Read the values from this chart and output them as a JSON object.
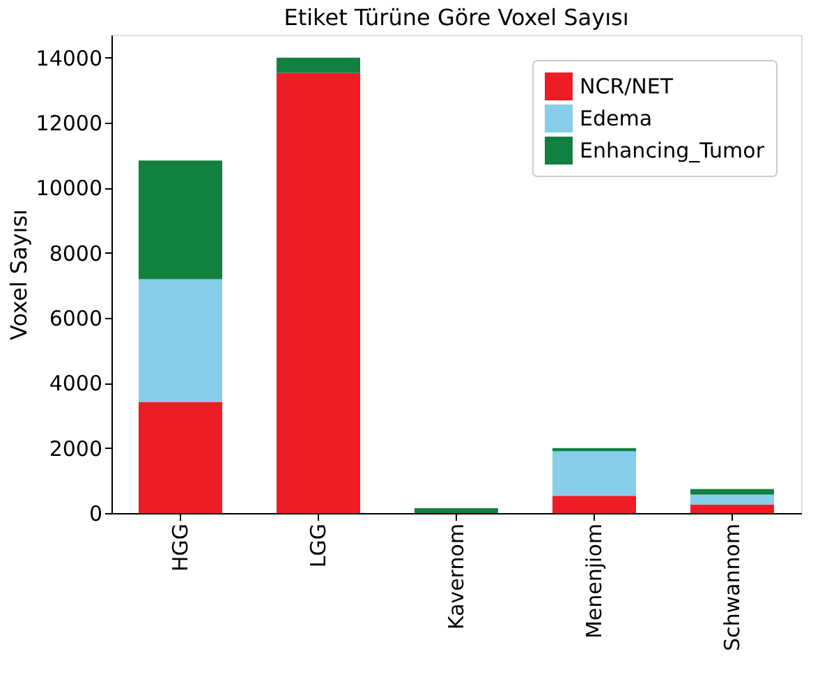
{
  "chart_data": {
    "type": "bar",
    "title": "Etiket Türüne Göre Voxel Sayısı",
    "ylabel": "Voxel Sayısı",
    "categories": [
      "HGG",
      "LGG",
      "Kavernom",
      "Menenjiom",
      "Schwannom"
    ],
    "stacked": true,
    "series": [
      {
        "name": "NCR/NET",
        "color": "#ee1c25",
        "values": [
          3420,
          13530,
          0,
          530,
          260
        ]
      },
      {
        "name": "Edema",
        "color": "#87ceeb",
        "values": [
          3770,
          0,
          0,
          1370,
          310
        ]
      },
      {
        "name": "Enhancing_Tumor",
        "color": "#118040",
        "values": [
          3650,
          470,
          150,
          100,
          170
        ]
      }
    ],
    "ylim": [
      0,
      14700
    ],
    "yticks": [
      0,
      2000,
      4000,
      6000,
      8000,
      10000,
      12000,
      14000
    ],
    "grid": false,
    "legend": "top right"
  }
}
